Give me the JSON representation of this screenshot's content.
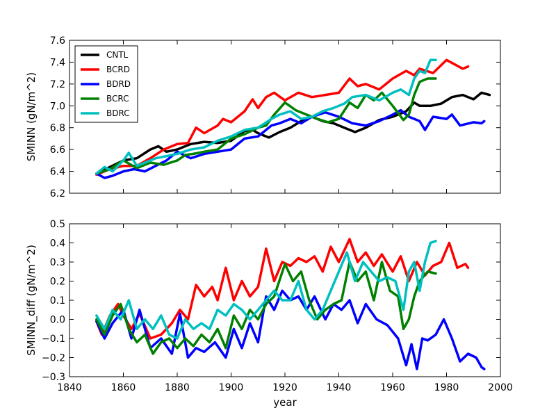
{
  "chart_data": [
    {
      "type": "line",
      "panel": "top",
      "title": "",
      "xlabel": "",
      "ylabel": "SMINN (gN/m^2)",
      "xlim": [
        1840,
        2000
      ],
      "ylim": [
        6.2,
        7.6
      ],
      "xticks": [
        1840,
        1860,
        1880,
        1900,
        1920,
        1940,
        1960,
        1980,
        2000
      ],
      "xtick_labels_visible": false,
      "yticks": [
        6.2,
        6.4,
        6.6,
        6.8,
        7.0,
        7.2,
        7.4,
        7.6
      ],
      "ytick_labels": [
        "6.2",
        "6.4",
        "6.6",
        "6.8",
        "7.0",
        "7.2",
        "7.4",
        "7.6"
      ],
      "legend": {
        "position": "top-left",
        "entries": [
          "CNTL",
          "BCRD",
          "BDRD",
          "BCRC",
          "BDRC"
        ]
      },
      "series": [
        {
          "name": "CNTL",
          "color": "#000000",
          "x": [
            1850,
            1855,
            1860,
            1865,
            1870,
            1873,
            1876,
            1880,
            1885,
            1890,
            1895,
            1900,
            1905,
            1908,
            1910,
            1914,
            1918,
            1922,
            1926,
            1930,
            1934,
            1938,
            1942,
            1946,
            1950,
            1955,
            1960,
            1965,
            1968,
            1970,
            1974,
            1978,
            1982,
            1986,
            1990,
            1993,
            1996
          ],
          "values": [
            6.38,
            6.44,
            6.5,
            6.52,
            6.6,
            6.63,
            6.58,
            6.6,
            6.65,
            6.67,
            6.66,
            6.68,
            6.77,
            6.78,
            6.75,
            6.71,
            6.76,
            6.8,
            6.86,
            6.9,
            6.86,
            6.84,
            6.8,
            6.76,
            6.8,
            6.87,
            6.9,
            6.95,
            7.03,
            7.0,
            7.0,
            7.02,
            7.08,
            7.1,
            7.06,
            7.12,
            7.1
          ]
        },
        {
          "name": "BCRD",
          "color": "#ff0000",
          "x": [
            1850,
            1855,
            1860,
            1865,
            1870,
            1875,
            1880,
            1884,
            1887,
            1890,
            1895,
            1897,
            1900,
            1905,
            1908,
            1910,
            1913,
            1916,
            1920,
            1925,
            1930,
            1935,
            1940,
            1944,
            1947,
            1950,
            1955,
            1960,
            1965,
            1968,
            1970,
            1975,
            1980,
            1983,
            1986,
            1988
          ],
          "values": [
            6.37,
            6.42,
            6.45,
            6.45,
            6.52,
            6.6,
            6.65,
            6.66,
            6.8,
            6.75,
            6.82,
            6.88,
            6.85,
            6.95,
            7.06,
            6.98,
            7.08,
            7.12,
            7.05,
            7.12,
            7.08,
            7.1,
            7.12,
            7.25,
            7.18,
            7.2,
            7.15,
            7.25,
            7.32,
            7.28,
            7.34,
            7.3,
            7.42,
            7.38,
            7.34,
            7.36
          ]
        },
        {
          "name": "BDRD",
          "color": "#0000ff",
          "x": [
            1850,
            1853,
            1856,
            1860,
            1864,
            1868,
            1872,
            1876,
            1880,
            1885,
            1890,
            1895,
            1900,
            1905,
            1910,
            1915,
            1918,
            1922,
            1926,
            1930,
            1935,
            1940,
            1945,
            1950,
            1955,
            1960,
            1963,
            1966,
            1970,
            1972,
            1975,
            1980,
            1982,
            1985,
            1990,
            1993,
            1994
          ],
          "values": [
            6.38,
            6.34,
            6.36,
            6.4,
            6.42,
            6.4,
            6.45,
            6.5,
            6.58,
            6.52,
            6.56,
            6.58,
            6.6,
            6.7,
            6.72,
            6.82,
            6.84,
            6.88,
            6.84,
            6.9,
            6.94,
            6.9,
            6.84,
            6.82,
            6.86,
            6.92,
            6.96,
            6.9,
            6.86,
            6.78,
            6.9,
            6.88,
            6.92,
            6.82,
            6.85,
            6.84,
            6.86
          ]
        },
        {
          "name": "BCRC",
          "color": "#008000",
          "x": [
            1850,
            1855,
            1860,
            1865,
            1870,
            1875,
            1880,
            1883,
            1886,
            1890,
            1895,
            1900,
            1905,
            1910,
            1913,
            1916,
            1920,
            1924,
            1928,
            1932,
            1936,
            1940,
            1944,
            1947,
            1950,
            1953,
            1956,
            1960,
            1964,
            1966,
            1968,
            1970,
            1973,
            1976
          ],
          "values": [
            6.38,
            6.42,
            6.5,
            6.43,
            6.48,
            6.46,
            6.5,
            6.55,
            6.56,
            6.58,
            6.6,
            6.7,
            6.74,
            6.8,
            6.82,
            6.92,
            7.03,
            6.96,
            6.92,
            6.88,
            6.85,
            6.88,
            7.03,
            6.98,
            7.1,
            7.05,
            7.12,
            7.0,
            6.87,
            6.92,
            7.1,
            7.22,
            7.25,
            7.25
          ]
        },
        {
          "name": "BDRC",
          "color": "#00bfbf",
          "x": [
            1850,
            1853,
            1856,
            1860,
            1862,
            1865,
            1868,
            1872,
            1876,
            1880,
            1885,
            1890,
            1895,
            1900,
            1905,
            1910,
            1915,
            1918,
            1922,
            1926,
            1930,
            1934,
            1938,
            1942,
            1945,
            1950,
            1955,
            1960,
            1963,
            1966,
            1968,
            1970,
            1972,
            1974,
            1976
          ],
          "values": [
            6.38,
            6.44,
            6.4,
            6.5,
            6.57,
            6.45,
            6.48,
            6.52,
            6.54,
            6.56,
            6.6,
            6.62,
            6.68,
            6.72,
            6.78,
            6.8,
            6.88,
            6.92,
            6.95,
            6.88,
            6.9,
            6.95,
            6.98,
            7.02,
            7.08,
            7.1,
            7.05,
            7.12,
            7.15,
            7.1,
            7.25,
            7.32,
            7.3,
            7.42,
            7.42
          ]
        }
      ]
    },
    {
      "type": "line",
      "panel": "bottom",
      "title": "",
      "xlabel": "year",
      "ylabel": "SMINN_diff (gN/m^2)",
      "xlim": [
        1840,
        2000
      ],
      "ylim": [
        -0.3,
        0.5
      ],
      "xticks": [
        1840,
        1860,
        1880,
        1900,
        1920,
        1940,
        1960,
        1980,
        2000
      ],
      "xtick_labels": [
        "1840",
        "1860",
        "1880",
        "1900",
        "1920",
        "1940",
        "1960",
        "1980",
        "2000"
      ],
      "yticks": [
        -0.3,
        -0.2,
        -0.1,
        0.0,
        0.1,
        0.2,
        0.3,
        0.4,
        0.5
      ],
      "ytick_labels": [
        "−0.3",
        "−0.2",
        "−0.1",
        "0.0",
        "0.1",
        "0.2",
        "0.3",
        "0.4",
        "0.5"
      ],
      "series": [
        {
          "name": "BCRD",
          "color": "#ff0000",
          "x": [
            1850,
            1852,
            1855,
            1858,
            1860,
            1863,
            1866,
            1870,
            1874,
            1878,
            1881,
            1884,
            1887,
            1890,
            1893,
            1895,
            1898,
            1901,
            1904,
            1907,
            1910,
            1913,
            1916,
            1919,
            1922,
            1925,
            1928,
            1931,
            1934,
            1937,
            1940,
            1944,
            1947,
            1950,
            1953,
            1956,
            1960,
            1963,
            1966,
            1969,
            1972,
            1975,
            1978,
            1981,
            1984,
            1987,
            1988
          ],
          "values": [
            -0.01,
            -0.08,
            0.02,
            0.08,
            0.02,
            -0.05,
            0.03,
            -0.1,
            -0.08,
            -0.02,
            0.05,
            0.0,
            0.18,
            0.12,
            0.17,
            0.1,
            0.27,
            0.1,
            0.2,
            0.12,
            0.17,
            0.37,
            0.2,
            0.3,
            0.28,
            0.32,
            0.3,
            0.33,
            0.25,
            0.38,
            0.3,
            0.42,
            0.3,
            0.35,
            0.28,
            0.34,
            0.25,
            0.33,
            0.2,
            0.3,
            0.23,
            0.28,
            0.3,
            0.4,
            0.27,
            0.29,
            0.27
          ]
        },
        {
          "name": "BDRD",
          "color": "#0000ff",
          "x": [
            1850,
            1853,
            1856,
            1860,
            1863,
            1866,
            1870,
            1874,
            1878,
            1881,
            1884,
            1887,
            1890,
            1894,
            1898,
            1901,
            1904,
            1907,
            1910,
            1913,
            1916,
            1919,
            1922,
            1925,
            1928,
            1931,
            1935,
            1938,
            1941,
            1944,
            1947,
            1950,
            1954,
            1958,
            1962,
            1965,
            1967,
            1969,
            1971,
            1973,
            1976,
            1979,
            1982,
            1985,
            1988,
            1991,
            1993,
            1994
          ],
          "values": [
            -0.01,
            -0.1,
            -0.02,
            0.05,
            -0.1,
            0.05,
            -0.15,
            -0.1,
            -0.18,
            0.03,
            -0.2,
            -0.15,
            -0.17,
            -0.12,
            -0.2,
            -0.05,
            -0.15,
            -0.02,
            -0.12,
            0.12,
            0.05,
            0.15,
            0.1,
            0.12,
            0.05,
            0.12,
            0.0,
            0.08,
            0.05,
            0.1,
            -0.02,
            0.08,
            0.0,
            -0.03,
            -0.1,
            -0.24,
            -0.13,
            -0.26,
            -0.1,
            -0.11,
            -0.08,
            0.0,
            -0.1,
            -0.22,
            -0.18,
            -0.2,
            -0.25,
            -0.26
          ]
        },
        {
          "name": "BCRC",
          "color": "#008000",
          "x": [
            1850,
            1853,
            1856,
            1859,
            1862,
            1865,
            1868,
            1871,
            1874,
            1877,
            1880,
            1883,
            1886,
            1889,
            1892,
            1895,
            1898,
            1901,
            1904,
            1907,
            1910,
            1913,
            1916,
            1920,
            1923,
            1926,
            1929,
            1932,
            1935,
            1938,
            1941,
            1944,
            1947,
            1950,
            1953,
            1956,
            1959,
            1962,
            1964,
            1966,
            1968,
            1970,
            1973,
            1976
          ],
          "values": [
            0.0,
            -0.08,
            0.02,
            0.08,
            -0.05,
            -0.12,
            -0.08,
            -0.18,
            -0.12,
            -0.1,
            -0.15,
            -0.1,
            -0.14,
            -0.08,
            -0.12,
            -0.05,
            -0.15,
            0.02,
            -0.05,
            0.05,
            0.0,
            0.08,
            0.12,
            0.29,
            0.2,
            0.25,
            0.1,
            0.0,
            0.05,
            0.08,
            0.1,
            0.3,
            0.2,
            0.25,
            0.1,
            0.3,
            0.15,
            0.12,
            -0.05,
            0.0,
            0.12,
            0.2,
            0.25,
            0.24
          ]
        },
        {
          "name": "BDRC",
          "color": "#00bfbf",
          "x": [
            1850,
            1853,
            1856,
            1859,
            1862,
            1865,
            1868,
            1871,
            1874,
            1877,
            1880,
            1883,
            1886,
            1889,
            1892,
            1895,
            1898,
            1901,
            1904,
            1907,
            1910,
            1913,
            1916,
            1919,
            1922,
            1925,
            1928,
            1931,
            1934,
            1937,
            1940,
            1943,
            1946,
            1949,
            1952,
            1955,
            1958,
            1961,
            1964,
            1966,
            1968,
            1970,
            1972,
            1974,
            1976
          ],
          "values": [
            0.02,
            -0.05,
            0.05,
            0.0,
            0.1,
            -0.05,
            0.0,
            -0.05,
            0.02,
            -0.08,
            -0.1,
            0.0,
            -0.05,
            -0.02,
            -0.05,
            0.05,
            0.02,
            0.08,
            0.05,
            0.0,
            0.05,
            0.1,
            0.15,
            0.1,
            0.1,
            0.2,
            0.05,
            0.0,
            0.05,
            0.15,
            0.25,
            0.35,
            0.2,
            0.3,
            0.25,
            0.2,
            0.22,
            0.2,
            0.05,
            0.25,
            0.3,
            0.15,
            0.3,
            0.4,
            0.41
          ]
        }
      ]
    }
  ]
}
